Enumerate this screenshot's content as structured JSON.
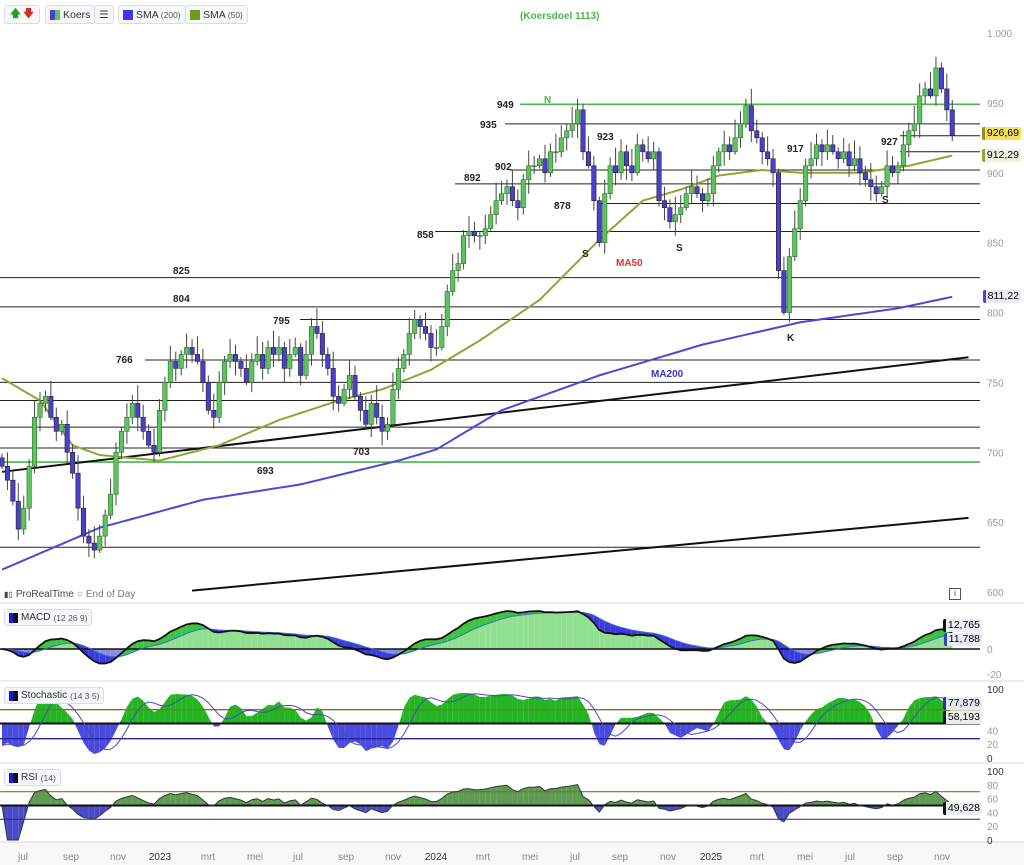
{
  "toolbar": {
    "up_arrow_icon": "arrow-up-green",
    "down_arrow_icon": "arrow-down-red",
    "price_label": "Koers",
    "list_icon": "list-icon",
    "sma200_label": "SMA",
    "sma200_period": "(200)",
    "sma50_label": "SMA",
    "sma50_period": "(50)"
  },
  "title": "(Koersdoel 1113)",
  "footer": {
    "brand": "ProRealTime",
    "mode": "End of Day",
    "info_label": "i"
  },
  "colors": {
    "up": "#5cc45c",
    "down": "#4b3fd0",
    "sma50": "#8aa832",
    "sma200": "#4a4ad8",
    "target": "#4cb54c"
  },
  "chart_data": {
    "type": "candlestick",
    "period": "weekly",
    "closes": [
      690,
      680,
      665,
      645,
      660,
      690,
      725,
      735,
      740,
      725,
      715,
      720,
      700,
      685,
      660,
      640,
      635,
      630,
      640,
      655,
      670,
      700,
      715,
      725,
      735,
      725,
      715,
      705,
      700,
      730,
      750,
      765,
      760,
      770,
      775,
      770,
      765,
      750,
      730,
      725,
      750,
      765,
      770,
      765,
      760,
      750,
      765,
      770,
      760,
      775,
      770,
      775,
      760,
      770,
      775,
      755,
      770,
      790,
      785,
      770,
      760,
      740,
      735,
      745,
      755,
      740,
      730,
      720,
      735,
      725,
      715,
      720,
      745,
      760,
      770,
      785,
      795,
      790,
      785,
      775,
      775,
      790,
      815,
      830,
      835,
      855,
      858,
      855,
      855,
      860,
      870,
      880,
      885,
      890,
      880,
      875,
      895,
      905,
      905,
      910,
      900,
      915,
      915,
      925,
      930,
      935,
      945,
      915,
      905,
      880,
      850,
      885,
      905,
      900,
      915,
      905,
      900,
      920,
      915,
      910,
      915,
      880,
      875,
      865,
      870,
      875,
      885,
      890,
      885,
      880,
      885,
      905,
      915,
      920,
      915,
      925,
      935,
      948,
      930,
      925,
      915,
      910,
      900,
      830,
      800,
      840,
      860,
      880,
      905,
      910,
      920,
      915,
      920,
      915,
      910,
      915,
      905,
      910,
      900,
      895,
      890,
      885,
      890,
      905,
      900,
      905,
      920,
      930,
      935,
      955,
      960,
      955,
      975,
      960,
      945,
      926.69
    ],
    "sma50": {
      "label": "MA50",
      "last": "912,29",
      "points": [
        [
          0,
          753
        ],
        [
          7,
          737
        ],
        [
          13,
          705
        ],
        [
          18,
          698
        ],
        [
          29,
          694
        ],
        [
          40,
          705
        ],
        [
          51,
          723
        ],
        [
          62,
          737
        ],
        [
          70,
          745
        ],
        [
          79,
          759
        ],
        [
          88,
          780
        ],
        [
          99,
          809
        ],
        [
          110,
          852
        ],
        [
          118,
          880
        ],
        [
          125,
          888
        ],
        [
          132,
          898
        ],
        [
          140,
          902
        ],
        [
          147,
          900
        ],
        [
          158,
          900
        ],
        [
          167,
          905
        ],
        [
          175,
          912.29
        ]
      ]
    },
    "sma200": {
      "label": "MA200",
      "last": "811,22",
      "points": [
        [
          0,
          616
        ],
        [
          18,
          646
        ],
        [
          37,
          666
        ],
        [
          55,
          677
        ],
        [
          73,
          694
        ],
        [
          80,
          702
        ],
        [
          92,
          730
        ],
        [
          110,
          755
        ],
        [
          129,
          777
        ],
        [
          147,
          793
        ],
        [
          165,
          803
        ],
        [
          175,
          811.22
        ]
      ]
    },
    "last_price": "926,69",
    "yaxis": {
      "ticks": [
        "1.000",
        "950",
        "900",
        "850",
        "800",
        "750",
        "700",
        "650",
        "600"
      ],
      "values": [
        1000,
        950,
        900,
        850,
        800,
        750,
        700,
        650,
        600
      ]
    },
    "xaxis": {
      "ticks": [
        "jul",
        "sep",
        "nov",
        "2023",
        "mrt",
        "mei",
        "jul",
        "sep",
        "nov",
        "2024",
        "mrt",
        "mei",
        "jul",
        "sep",
        "nov",
        "2025",
        "mrt",
        "mei",
        "jul",
        "sep",
        "nov"
      ]
    },
    "levels": [
      {
        "value": 949,
        "color": "#4cb54c"
      },
      {
        "value": 935
      },
      {
        "value": 926.5
      },
      {
        "value": 915
      },
      {
        "value": 902
      },
      {
        "value": 892
      },
      {
        "value": 878
      },
      {
        "value": 858
      },
      {
        "value": 825
      },
      {
        "value": 804
      },
      {
        "value": 795
      },
      {
        "value": 766
      },
      {
        "value": 750
      },
      {
        "value": 737
      },
      {
        "value": 718
      },
      {
        "value": 703
      },
      {
        "value": 693,
        "color": "#4cb54c"
      },
      {
        "value": 632
      }
    ],
    "trendlines": [
      {
        "from": [
          0,
          686
        ],
        "to": [
          178,
          768
        ]
      },
      {
        "from": [
          35,
          601
        ],
        "to": [
          178,
          653
        ]
      }
    ],
    "annotations": [
      {
        "text": "949"
      },
      {
        "text": "N",
        "color": "#4cb54c"
      },
      {
        "text": "935"
      },
      {
        "text": "923"
      },
      {
        "text": "902"
      },
      {
        "text": "892"
      },
      {
        "text": "878"
      },
      {
        "text": "858"
      },
      {
        "text": "825"
      },
      {
        "text": "804"
      },
      {
        "text": "795"
      },
      {
        "text": "766"
      },
      {
        "text": "703"
      },
      {
        "text": "693"
      },
      {
        "text": "S"
      },
      {
        "text": "S"
      },
      {
        "text": "S"
      },
      {
        "text": "K"
      },
      {
        "text": "917"
      },
      {
        "text": "927"
      },
      {
        "text": "MA50",
        "color": "#e03030"
      },
      {
        "text": "MA200",
        "color": "#3434c0"
      }
    ],
    "indicators": {
      "macd": {
        "label": "MACD",
        "params": "(12 26 9)",
        "value1": "12,765",
        "value2": "11,788",
        "ticks": [
          "0",
          "-20"
        ]
      },
      "stochastic": {
        "label": "Stochastic",
        "params": "(14 3 5)",
        "value1": "77,879",
        "value2": "58,193",
        "ticks": [
          "100",
          "40",
          "20",
          "0"
        ],
        "levels": [
          70,
          50,
          28
        ]
      },
      "rsi": {
        "label": "RSI",
        "params": "(14)",
        "value1": "49,628",
        "ticks": [
          "100",
          "80",
          "60",
          "40",
          "20",
          "0"
        ],
        "levels": [
          70,
          50,
          30
        ]
      }
    }
  }
}
